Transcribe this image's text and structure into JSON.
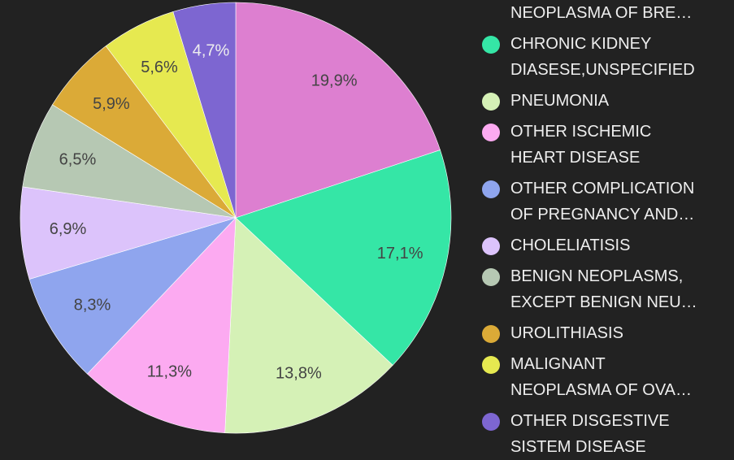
{
  "chart_data": {
    "type": "pie",
    "categories": [
      "NEOPLASMA OF BRE…",
      "CHRONIC KIDNEY\nDIASESE,UNSPECIFIED",
      "PNEUMONIA",
      "OTHER ISCHEMIC\nHEART DISEASE",
      "OTHER COMPLICATION\nOF PREGNANCY AND…",
      "CHOLELIATISIS",
      "BENIGN NEOPLASMS,\nEXCEPT BENIGN NEU…",
      "UROLITHIASIS",
      "MALIGNANT\nNEOPLASMA OF OVA…",
      "OTHER DISGESTIVE\nSISTEM DISEASE"
    ],
    "values": [
      19.9,
      17.1,
      13.8,
      11.3,
      8.3,
      6.9,
      6.5,
      5.9,
      5.6,
      4.7
    ],
    "value_labels": [
      "19,9%",
      "17,1%",
      "13,8%",
      "11,3%",
      "8,3%",
      "6,9%",
      "6,5%",
      "5,9%",
      "5,6%",
      "4,7%"
    ],
    "colors": [
      "#dd7fd0",
      "#35e6a6",
      "#d5f1b6",
      "#fcaaf1",
      "#8fa5ee",
      "#dcc3fb",
      "#b6c8b3",
      "#dbaa37",
      "#e6e950",
      "#7d66d1"
    ]
  }
}
